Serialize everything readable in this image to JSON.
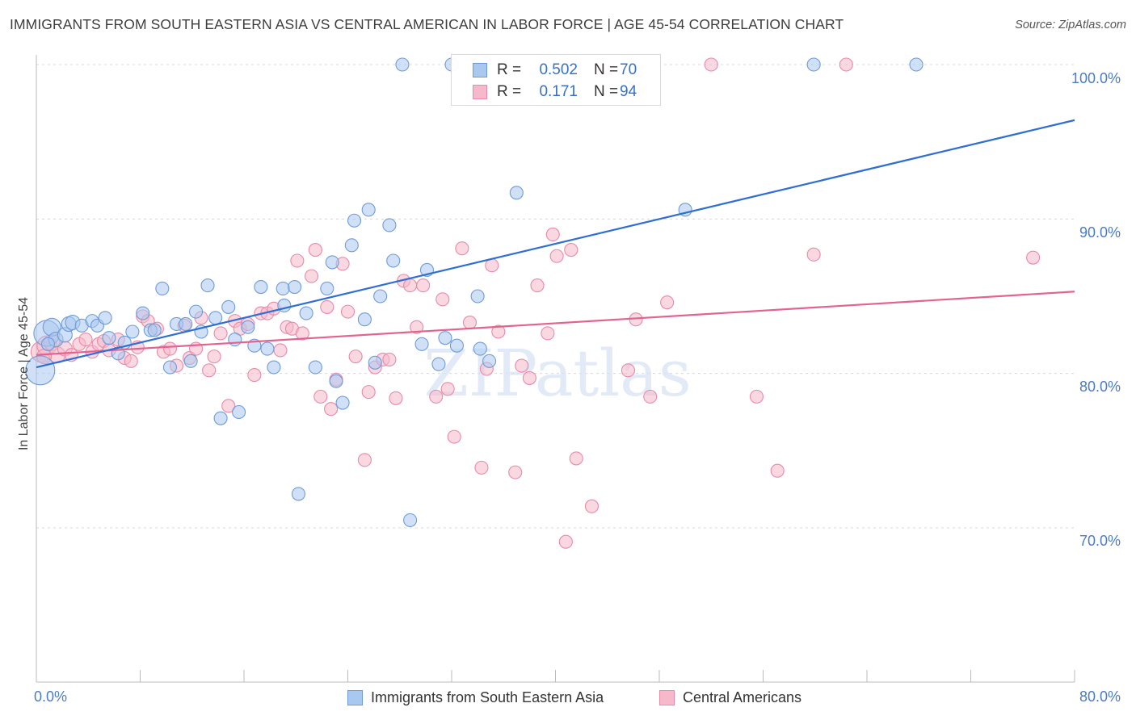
{
  "title": "IMMIGRANTS FROM SOUTH EASTERN ASIA VS CENTRAL AMERICAN IN LABOR FORCE | AGE 45-54 CORRELATION CHART",
  "source": "Source: ZipAtlas.com",
  "watermark": "ZIPatlas",
  "colors": {
    "blue_fill": "#a9c8f0",
    "blue_stroke": "#6f9bd8",
    "blue_line": "#2e6fd1",
    "pink_fill": "#f6b8cb",
    "pink_stroke": "#e88aa8",
    "pink_line": "#e2638e",
    "grid": "#d8d8d8",
    "tick_text": "#4a7cc7"
  },
  "legend": {
    "r_label": "R =",
    "n_label": "N =",
    "rows": [
      {
        "series": "blue",
        "r": "0.502",
        "n": "70"
      },
      {
        "series": "pink",
        "r": "0.171",
        "n": "94"
      }
    ]
  },
  "bottom_legend": {
    "blue": "Immigrants from South Eastern Asia",
    "pink": "Central Americans"
  },
  "axis": {
    "ylabel": "In Labor Force | Age 45-54",
    "x_min_label": "0.0%",
    "x_max_label": "80.0%",
    "y_ticks": [
      "100.0%",
      "90.0%",
      "80.0%",
      "70.0%"
    ]
  },
  "chart_data": {
    "type": "scatter",
    "title": "IMMIGRANTS FROM SOUTH EASTERN ASIA VS CENTRAL AMERICAN IN LABOR FORCE | AGE 45-54 CORRELATION CHART",
    "xlabel": "",
    "ylabel": "In Labor Force | Age 45-54",
    "xlim": [
      0,
      80
    ],
    "ylim": [
      60,
      101.5
    ],
    "yticks": [
      70,
      80,
      90,
      100
    ],
    "grid": true,
    "legend_position": "top-center",
    "series": [
      {
        "name": "Immigrants from South Eastern Asia",
        "color": "blue",
        "R": 0.502,
        "N": 70,
        "trend": [
          [
            0,
            80.4
          ],
          [
            80,
            96.4
          ]
        ],
        "points": [
          [
            0.3,
            80.2,
            18
          ],
          [
            0.8,
            82.6,
            16
          ],
          [
            1.2,
            83.0,
            11
          ],
          [
            1.5,
            82.2,
            9
          ],
          [
            2.2,
            82.5,
            9
          ],
          [
            2.5,
            83.2,
            9
          ],
          [
            2.8,
            83.3,
            9
          ],
          [
            3.5,
            83.1,
            8
          ],
          [
            4.3,
            83.4,
            8
          ],
          [
            4.7,
            83.1,
            8
          ],
          [
            5.3,
            83.6,
            8
          ],
          [
            5.6,
            82.3,
            8
          ],
          [
            6.3,
            81.3,
            8
          ],
          [
            6.8,
            82.0,
            8
          ],
          [
            7.4,
            82.7,
            8
          ],
          [
            8.2,
            83.9,
            8
          ],
          [
            8.8,
            82.8,
            8
          ],
          [
            9.1,
            82.8,
            8
          ],
          [
            9.7,
            85.5,
            8
          ],
          [
            10.3,
            80.4,
            8
          ],
          [
            10.8,
            83.2,
            8
          ],
          [
            11.5,
            83.2,
            8
          ],
          [
            11.9,
            80.8,
            8
          ],
          [
            12.3,
            84.0,
            8
          ],
          [
            12.7,
            82.7,
            8
          ],
          [
            13.2,
            85.7,
            8
          ],
          [
            13.8,
            83.6,
            8
          ],
          [
            14.2,
            77.1,
            8
          ],
          [
            14.8,
            84.3,
            8
          ],
          [
            15.3,
            82.2,
            8
          ],
          [
            15.6,
            77.5,
            8
          ],
          [
            16.3,
            83.0,
            8
          ],
          [
            16.8,
            81.8,
            8
          ],
          [
            17.3,
            85.6,
            8
          ],
          [
            17.8,
            81.6,
            8
          ],
          [
            18.3,
            80.4,
            8
          ],
          [
            19.0,
            85.5,
            8
          ],
          [
            19.1,
            84.4,
            8
          ],
          [
            19.9,
            85.6,
            8
          ],
          [
            20.2,
            72.2,
            8
          ],
          [
            20.8,
            83.9,
            8
          ],
          [
            21.5,
            80.4,
            8
          ],
          [
            22.4,
            85.5,
            8
          ],
          [
            22.8,
            87.2,
            8
          ],
          [
            23.1,
            79.5,
            8
          ],
          [
            23.6,
            78.1,
            8
          ],
          [
            24.3,
            88.3,
            8
          ],
          [
            24.5,
            89.9,
            8
          ],
          [
            25.3,
            83.5,
            8
          ],
          [
            25.6,
            90.6,
            8
          ],
          [
            26.1,
            80.7,
            8
          ],
          [
            26.5,
            85.0,
            8
          ],
          [
            27.2,
            89.6,
            8
          ],
          [
            27.5,
            87.3,
            8
          ],
          [
            28.2,
            100.0,
            8
          ],
          [
            28.8,
            70.5,
            8
          ],
          [
            29.7,
            81.9,
            8
          ],
          [
            30.1,
            86.7,
            8
          ],
          [
            31.0,
            80.6,
            8
          ],
          [
            31.5,
            82.3,
            8
          ],
          [
            32.0,
            100.0,
            8
          ],
          [
            32.4,
            81.8,
            8
          ],
          [
            34.0,
            85.0,
            8
          ],
          [
            34.2,
            81.6,
            8
          ],
          [
            34.9,
            80.8,
            8
          ],
          [
            37.0,
            91.7,
            8
          ],
          [
            50.0,
            90.6,
            8
          ],
          [
            59.9,
            100.0,
            8
          ],
          [
            67.8,
            100.0,
            8
          ],
          [
            0.9,
            81.9,
            8
          ]
        ]
      },
      {
        "name": "Central Americans",
        "color": "pink",
        "R": 0.171,
        "N": 94,
        "trend": [
          [
            0,
            81.2
          ],
          [
            80,
            85.3
          ]
        ],
        "points": [
          [
            0.4,
            81.4,
            13
          ],
          [
            0.8,
            81.8,
            12
          ],
          [
            1.2,
            82.0,
            10
          ],
          [
            1.6,
            81.2,
            10
          ],
          [
            2.2,
            81.6,
            9
          ],
          [
            2.7,
            81.2,
            8
          ],
          [
            3.3,
            81.9,
            8
          ],
          [
            3.8,
            82.2,
            8
          ],
          [
            4.3,
            81.4,
            8
          ],
          [
            4.8,
            81.9,
            8
          ],
          [
            5.2,
            82.1,
            8
          ],
          [
            5.6,
            81.5,
            8
          ],
          [
            6.3,
            82.2,
            8
          ],
          [
            6.8,
            81.0,
            8
          ],
          [
            7.3,
            80.8,
            8
          ],
          [
            7.8,
            81.7,
            8
          ],
          [
            8.2,
            83.7,
            8
          ],
          [
            8.6,
            83.4,
            8
          ],
          [
            9.3,
            82.9,
            8
          ],
          [
            9.8,
            81.4,
            8
          ],
          [
            10.3,
            81.6,
            8
          ],
          [
            10.8,
            80.5,
            8
          ],
          [
            11.4,
            83.1,
            8
          ],
          [
            11.8,
            81.0,
            8
          ],
          [
            12.3,
            81.6,
            8
          ],
          [
            12.7,
            83.6,
            8
          ],
          [
            13.3,
            80.2,
            8
          ],
          [
            13.7,
            81.1,
            8
          ],
          [
            14.2,
            82.6,
            8
          ],
          [
            14.8,
            77.9,
            8
          ],
          [
            15.3,
            83.4,
            8
          ],
          [
            15.7,
            82.9,
            8
          ],
          [
            16.3,
            83.2,
            8
          ],
          [
            16.8,
            79.9,
            8
          ],
          [
            17.3,
            83.9,
            8
          ],
          [
            17.8,
            83.9,
            8
          ],
          [
            18.3,
            84.2,
            8
          ],
          [
            18.8,
            81.5,
            8
          ],
          [
            19.3,
            83.0,
            8
          ],
          [
            19.7,
            82.9,
            8
          ],
          [
            20.1,
            87.3,
            8
          ],
          [
            20.5,
            82.6,
            8
          ],
          [
            21.2,
            86.3,
            8
          ],
          [
            21.5,
            88.0,
            8
          ],
          [
            21.9,
            78.5,
            8
          ],
          [
            22.4,
            84.3,
            8
          ],
          [
            22.7,
            77.7,
            8
          ],
          [
            23.1,
            79.6,
            8
          ],
          [
            23.6,
            87.1,
            8
          ],
          [
            24.0,
            84.0,
            8
          ],
          [
            24.6,
            81.1,
            8
          ],
          [
            25.3,
            74.4,
            8
          ],
          [
            25.6,
            78.8,
            8
          ],
          [
            26.1,
            80.4,
            8
          ],
          [
            26.7,
            80.9,
            8
          ],
          [
            27.2,
            80.9,
            8
          ],
          [
            27.7,
            78.4,
            8
          ],
          [
            28.3,
            86.0,
            8
          ],
          [
            28.8,
            85.7,
            8
          ],
          [
            29.3,
            83.0,
            8
          ],
          [
            29.8,
            85.7,
            8
          ],
          [
            30.8,
            78.5,
            8
          ],
          [
            31.3,
            84.8,
            8
          ],
          [
            31.7,
            79.0,
            8
          ],
          [
            32.2,
            75.9,
            8
          ],
          [
            32.8,
            88.1,
            8
          ],
          [
            33.4,
            83.3,
            8
          ],
          [
            34.3,
            73.9,
            8
          ],
          [
            34.7,
            80.3,
            8
          ],
          [
            35.1,
            87.0,
            8
          ],
          [
            35.6,
            82.7,
            8
          ],
          [
            36.9,
            73.6,
            8
          ],
          [
            37.4,
            80.5,
            8
          ],
          [
            38.0,
            79.7,
            8
          ],
          [
            38.6,
            85.7,
            8
          ],
          [
            39.4,
            82.6,
            8
          ],
          [
            39.8,
            89.0,
            8
          ],
          [
            40.1,
            87.6,
            8
          ],
          [
            40.8,
            69.1,
            8
          ],
          [
            41.2,
            88.0,
            8
          ],
          [
            41.6,
            74.5,
            8
          ],
          [
            42.8,
            71.4,
            8
          ],
          [
            43.8,
            99.6,
            8
          ],
          [
            45.6,
            80.2,
            8
          ],
          [
            46.2,
            83.5,
            8
          ],
          [
            47.3,
            78.5,
            8
          ],
          [
            48.6,
            84.6,
            8
          ],
          [
            52.0,
            100.0,
            8
          ],
          [
            55.5,
            78.5,
            8
          ],
          [
            57.1,
            73.7,
            8
          ],
          [
            59.9,
            87.7,
            8
          ],
          [
            62.4,
            100.0,
            8
          ],
          [
            76.8,
            87.5,
            8
          ],
          [
            0.6,
            81.1,
            9
          ]
        ]
      }
    ]
  }
}
